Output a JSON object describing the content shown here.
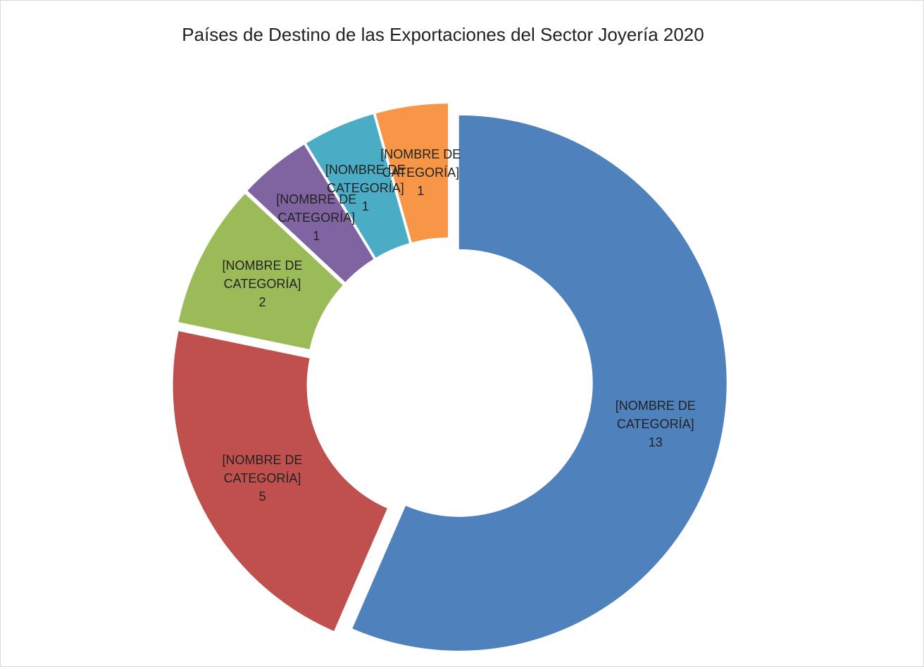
{
  "chart_data": {
    "type": "donut",
    "title": "Países de Destino de las Exportaciones del Sector Joyería 2020",
    "categories": [
      "[NOMBRE DE CATEGORÍA]",
      "[NOMBRE DE CATEGORÍA]",
      "[NOMBRE DE CATEGORÍA]",
      "[NOMBRE DE CATEGORÍA]",
      "[NOMBRE DE CATEGORÍA]",
      "[NOMBRE DE CATEGORÍA]"
    ],
    "values": [
      13,
      5,
      2,
      1,
      1,
      1
    ],
    "colors": [
      "#4f81bd",
      "#c0504d",
      "#9bbb59",
      "#8064a2",
      "#4bacc6",
      "#f79646"
    ]
  }
}
